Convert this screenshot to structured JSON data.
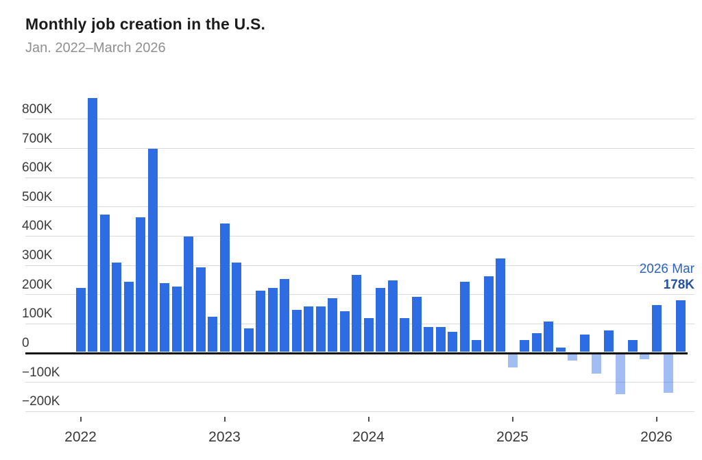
{
  "header": {
    "title": "Monthly job creation in the U.S.",
    "subtitle": "Jan. 2022–March 2026"
  },
  "chart_data": {
    "type": "bar",
    "title": "Monthly job creation in the U.S.",
    "subtitle": "Jan. 2022–March 2026",
    "units": "thousands of jobs",
    "grid": "horizontal gridlines on, thick black zero baseline",
    "legend_position": "none",
    "ylim_thousands": [
      -200,
      870
    ],
    "months": [
      "2022 Jan",
      "2022 Feb",
      "2022 Mar",
      "2022 Apr",
      "2022 May",
      "2022 Jun",
      "2022 Jul",
      "2022 Aug",
      "2022 Sep",
      "2022 Oct",
      "2022 Nov",
      "2022 Dec",
      "2023 Jan",
      "2023 Feb",
      "2023 Mar",
      "2023 Apr",
      "2023 May",
      "2023 Jun",
      "2023 Jul",
      "2023 Aug",
      "2023 Sep",
      "2023 Oct",
      "2023 Nov",
      "2023 Dec",
      "2024 Jan",
      "2024 Feb",
      "2024 Mar",
      "2024 Apr",
      "2024 May",
      "2024 Jun",
      "2024 Jul",
      "2024 Aug",
      "2024 Sep",
      "2024 Oct",
      "2024 Nov",
      "2024 Dec",
      "2025 Jan",
      "2025 Feb",
      "2025 Mar",
      "2025 Apr",
      "2025 May",
      "2025 Jun",
      "2025 Jul",
      "2025 Aug",
      "2025 Sep",
      "2025 Oct",
      "2025 Nov",
      "2025 Dec",
      "2026 Jan",
      "2026 Feb",
      "2026 Mar"
    ],
    "values_thousands": [
      220,
      870,
      470,
      305,
      240,
      460,
      695,
      235,
      225,
      395,
      290,
      120,
      440,
      305,
      80,
      210,
      220,
      250,
      145,
      155,
      155,
      185,
      140,
      265,
      115,
      220,
      245,
      115,
      190,
      85,
      85,
      70,
      240,
      40,
      260,
      320,
      -50,
      40,
      65,
      105,
      15,
      -25,
      60,
      -70,
      75,
      -140,
      40,
      -20,
      160,
      -135,
      178
    ],
    "y_axis": {
      "ticks": [
        {
          "value": 800,
          "label": "800K"
        },
        {
          "value": 700,
          "label": "700K"
        },
        {
          "value": 600,
          "label": "600K"
        },
        {
          "value": 500,
          "label": "500K"
        },
        {
          "value": 400,
          "label": "400K"
        },
        {
          "value": 300,
          "label": "300K"
        },
        {
          "value": 200,
          "label": "200K"
        },
        {
          "value": 100,
          "label": "100K"
        },
        {
          "value": 0,
          "label": "0"
        },
        {
          "value": -100,
          "label": "−100K"
        },
        {
          "value": -200,
          "label": "−200K"
        }
      ]
    },
    "x_axis": {
      "ticks": [
        {
          "label": "2022",
          "month_index": 0
        },
        {
          "label": "2023",
          "month_index": 12
        },
        {
          "label": "2024",
          "month_index": 24
        },
        {
          "label": "2025",
          "month_index": 36
        },
        {
          "label": "2026",
          "month_index": 48
        }
      ]
    },
    "annotation": {
      "label": "2026 Mar",
      "value": "178K"
    },
    "colors": {
      "positive_bar": "#2e6ce4",
      "negative_bar": "#a7c5f6",
      "annotation_label": "#2d64ba",
      "annotation_value": "#26519c",
      "gridline": "#d9d9d9",
      "zero_line": "#111111"
    }
  }
}
